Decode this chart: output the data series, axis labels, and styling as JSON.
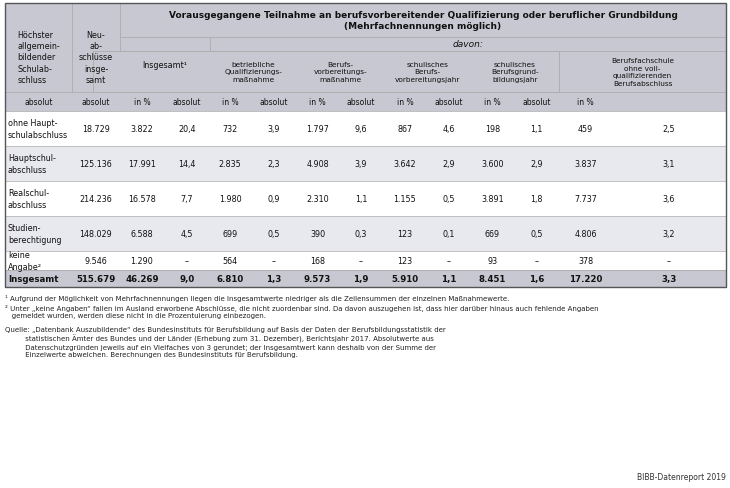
{
  "title_top": "Vorausgegangene Teilnahme an berufsvorbereitender Qualifizierung oder beruflicher Grundbildung\n(Mehrfachnennungen möglich)",
  "davon_label": "davon:",
  "groups": [
    "betriebliche\nQualifizierungs-\nmaßnahme",
    "Berufs-\nvorbereitungs-\nmaßnahme",
    "schulisches\nBerufs-\nvorbereitungsjahr",
    "schulisches\nBerufsgrund-\nbildungsjahr",
    "Berufsfachschule\nohne voll-\nqualifizierenden\nBerufsabschluss"
  ],
  "col0_label": "Höchster\nallgemein-\nbildender\nSchulab-\nschluss",
  "col1_label": "Neu-\nab-\nschlüsse\ninsge-\nsamt",
  "insgesamt_label": "Insgesamt¹",
  "rows": [
    [
      "ohne Haupt-\nschulabschluss",
      "18.729",
      "3.822",
      "20,4",
      "732",
      "3,9",
      "1.797",
      "9,6",
      "867",
      "4,6",
      "198",
      "1,1",
      "459",
      "2,5"
    ],
    [
      "Hauptschul-\nabschluss",
      "125.136",
      "17.991",
      "14,4",
      "2.835",
      "2,3",
      "4.908",
      "3,9",
      "3.642",
      "2,9",
      "3.600",
      "2,9",
      "3.837",
      "3,1"
    ],
    [
      "Realschul-\nabschluss",
      "214.236",
      "16.578",
      "7,7",
      "1.980",
      "0,9",
      "2.310",
      "1,1",
      "1.155",
      "0,5",
      "3.891",
      "1,8",
      "7.737",
      "3,6"
    ],
    [
      "Studien-\nberechtigung",
      "148.029",
      "6.588",
      "4,5",
      "699",
      "0,5",
      "390",
      "0,3",
      "123",
      "0,1",
      "669",
      "0,5",
      "4.806",
      "3,2"
    ],
    [
      "keine\nAngabe²",
      "9.546",
      "1.290",
      "–",
      "564",
      "–",
      "168",
      "–",
      "123",
      "–",
      "93",
      "–",
      "378",
      "–"
    ]
  ],
  "total_row": [
    "Insgesamt",
    "515.679",
    "46.269",
    "9,0",
    "6.810",
    "1,3",
    "9.573",
    "1,9",
    "5.910",
    "1,1",
    "8.451",
    "1,6",
    "17.220",
    "3,3"
  ],
  "footnote1": "¹ Aufgrund der Möglichkeit von Mehrfachnennungen liegen die Insgesamtwerte niedriger als die Zeilensummen der einzelnen Maßnahmewerte.",
  "footnote2": "² Unter „keine Angaben“ fallen im Ausland erworbene Abschlüsse, die nicht zuordenbar sind. Da davon auszugehen ist, dass hier darüber hinaus auch fehlende Angaben\n   gemeldet wurden, werden diese nicht in die Prozentuierung einbezogen.",
  "source": "Quelle: „Datenbank Auszubildende“ des Bundesinstituts für Berufsbildung auf Basis der Daten der Berufsbildungsstatistik der\n         statistischen Ämter des Bundes und der Länder (Erhebung zum 31. Dezember), Berichtsjahr 2017. Absolutwerte aus\n         Datenschutzgründen jeweils auf ein Vielfaches von 3 gerundet; der Insgesamtwert kann deshalb von der Summe der\n         Einzelwerte abweichen. Berechnungen des Bundesinstituts für Berufsbildung.",
  "bibb": "BIBB-Datenreport 2019",
  "bg_header": "#c8c8d2",
  "bg_white": "#ffffff",
  "bg_stripe": "#e8e8ef",
  "text_dark": "#111111",
  "border_outer": "#555555",
  "border_inner": "#aaaaaa"
}
